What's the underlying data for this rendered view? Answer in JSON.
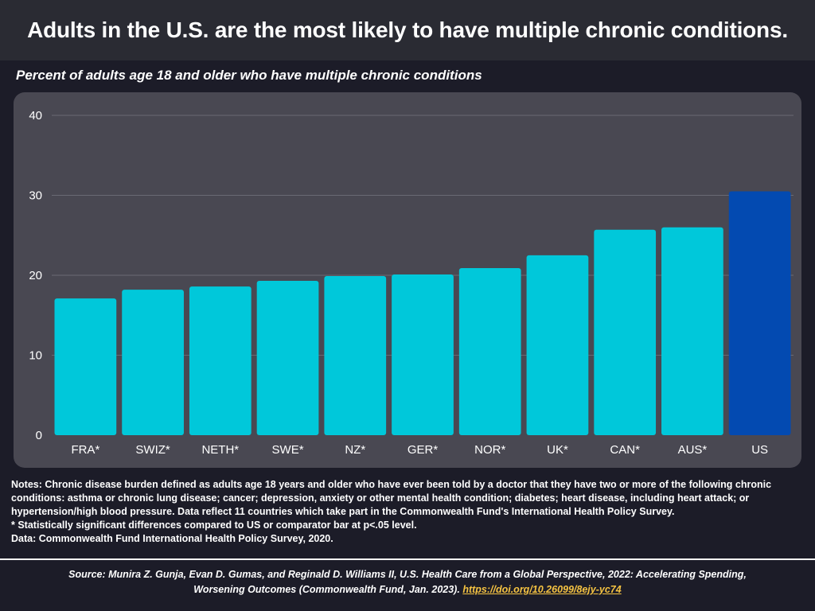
{
  "header": {
    "title": "Adults in the U.S. are the most likely to have multiple chronic conditions.",
    "subtitle": "Percent of adults age 18 and older who have multiple chronic conditions"
  },
  "chart_data": {
    "type": "bar",
    "title": "Adults in the U.S. are the most likely to have multiple chronic conditions.",
    "subtitle": "Percent of adults age 18 and older who have multiple chronic conditions",
    "categories": [
      "FRA*",
      "SWIZ*",
      "NETH*",
      "SWE*",
      "NZ*",
      "GER*",
      "NOR*",
      "UK*",
      "CAN*",
      "AUS*",
      "US"
    ],
    "values": [
      17.1,
      18.2,
      18.6,
      19.3,
      19.9,
      20.1,
      20.9,
      22.5,
      25.7,
      26.0,
      30.5
    ],
    "highlight": "US",
    "colors": {
      "bar": "#00c8da",
      "highlight": "#034ab1",
      "grid": "#6a6a74",
      "text": "#ffffff"
    },
    "ylim": [
      0,
      40
    ],
    "yticks": [
      0,
      10,
      20,
      30,
      40
    ],
    "grid": true,
    "xlabel": "",
    "ylabel": ""
  },
  "notes": {
    "line1": "Notes: Chronic disease burden defined as adults age 18 years and older who have ever been told by a doctor that they have two or more of the following chronic conditions: asthma or chronic lung disease; cancer; depression, anxiety or other mental health condition; diabetes; heart disease, including heart attack; or hypertension/high blood pressure. Data reflect 11 countries which take part in the Commonwealth Fund's International Health Policy Survey.",
    "line2": "* Statistically significant differences compared to US or comparator bar at p<.05 level.",
    "line3": "Data: Commonwealth Fund International Health Policy Survey, 2020."
  },
  "source": {
    "text": "Source: Munira Z. Gunja, Evan D. Gumas, and Reginald D. Williams II, U.S. Health Care from a Global Perspective, 2022: Accelerating Spending, Worsening Outcomes (Commonwealth Fund, Jan. 2023).",
    "link": "https://doi.org/10.26099/8ejy-yc74"
  }
}
